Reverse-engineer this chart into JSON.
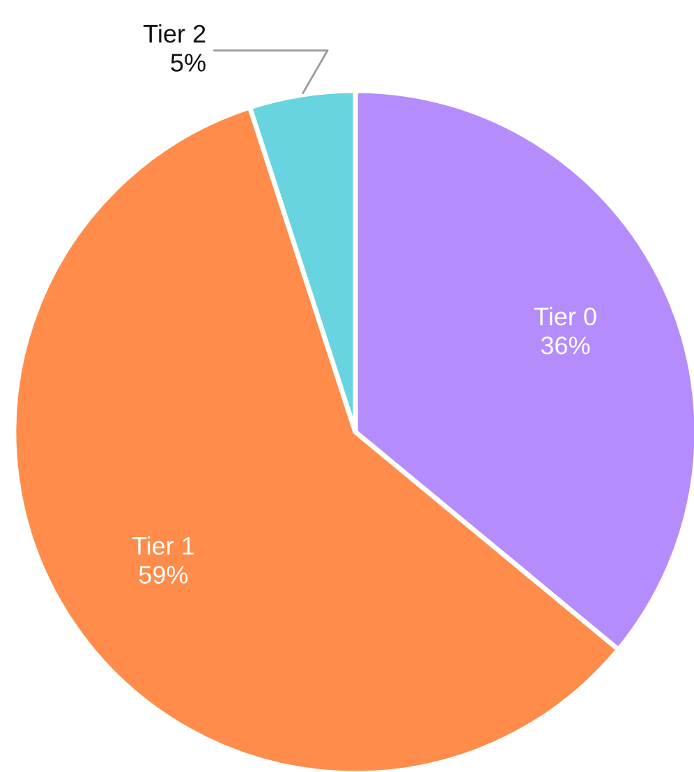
{
  "chart_data": {
    "type": "pie",
    "categories": [
      "Tier 0",
      "Tier 1",
      "Tier 2"
    ],
    "values": [
      36,
      59,
      5
    ],
    "colors": [
      "#b48cfc",
      "#ff8c4a",
      "#68d4e0"
    ],
    "value_labels": [
      "36%",
      "59%",
      "5%"
    ],
    "legend": false
  }
}
